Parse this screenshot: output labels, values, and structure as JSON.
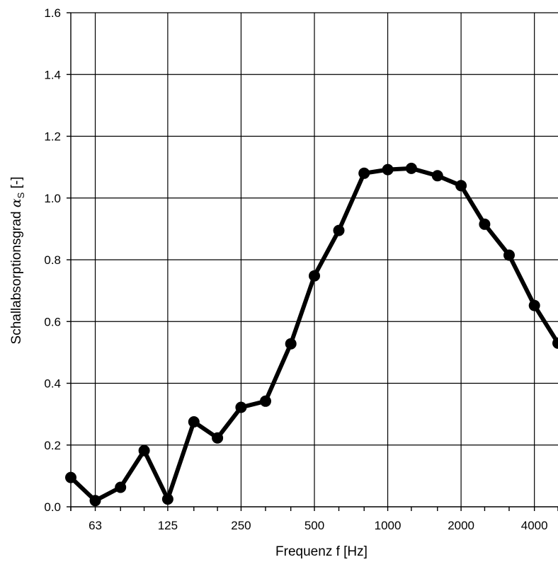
{
  "chart_data": {
    "type": "line",
    "x_scale": "log",
    "xlabel": "Frequenz  f [Hz]",
    "ylabel_main": "Schallabsorptionsgrad ",
    "ylabel_symbol": "α",
    "ylabel_sub": "S",
    "ylabel_tail": " [-]",
    "ylim": [
      0,
      1.6
    ],
    "y_ticks": [
      "0.0",
      "0.2",
      "0.4",
      "0.6",
      "0.8",
      "1.0",
      "1.2",
      "1.4",
      "1.6"
    ],
    "x_tick_labels": [
      {
        "value": 63,
        "label": "63"
      },
      {
        "value": 125,
        "label": "125"
      },
      {
        "value": 250,
        "label": "250"
      },
      {
        "value": 500,
        "label": "500"
      },
      {
        "value": 1000,
        "label": "1000"
      },
      {
        "value": 2000,
        "label": "2000"
      },
      {
        "value": 4000,
        "label": "4000"
      }
    ],
    "grid": true,
    "x": [
      50,
      63,
      80,
      100,
      125,
      160,
      200,
      250,
      315,
      400,
      500,
      630,
      800,
      1000,
      1250,
      1600,
      2000,
      2500,
      3150,
      4000,
      5000
    ],
    "values": [
      0.095,
      0.02,
      0.063,
      0.182,
      0.025,
      0.275,
      0.223,
      0.322,
      0.342,
      0.528,
      0.748,
      0.895,
      1.08,
      1.092,
      1.096,
      1.072,
      1.04,
      0.915,
      0.815,
      0.652,
      0.53
    ]
  }
}
